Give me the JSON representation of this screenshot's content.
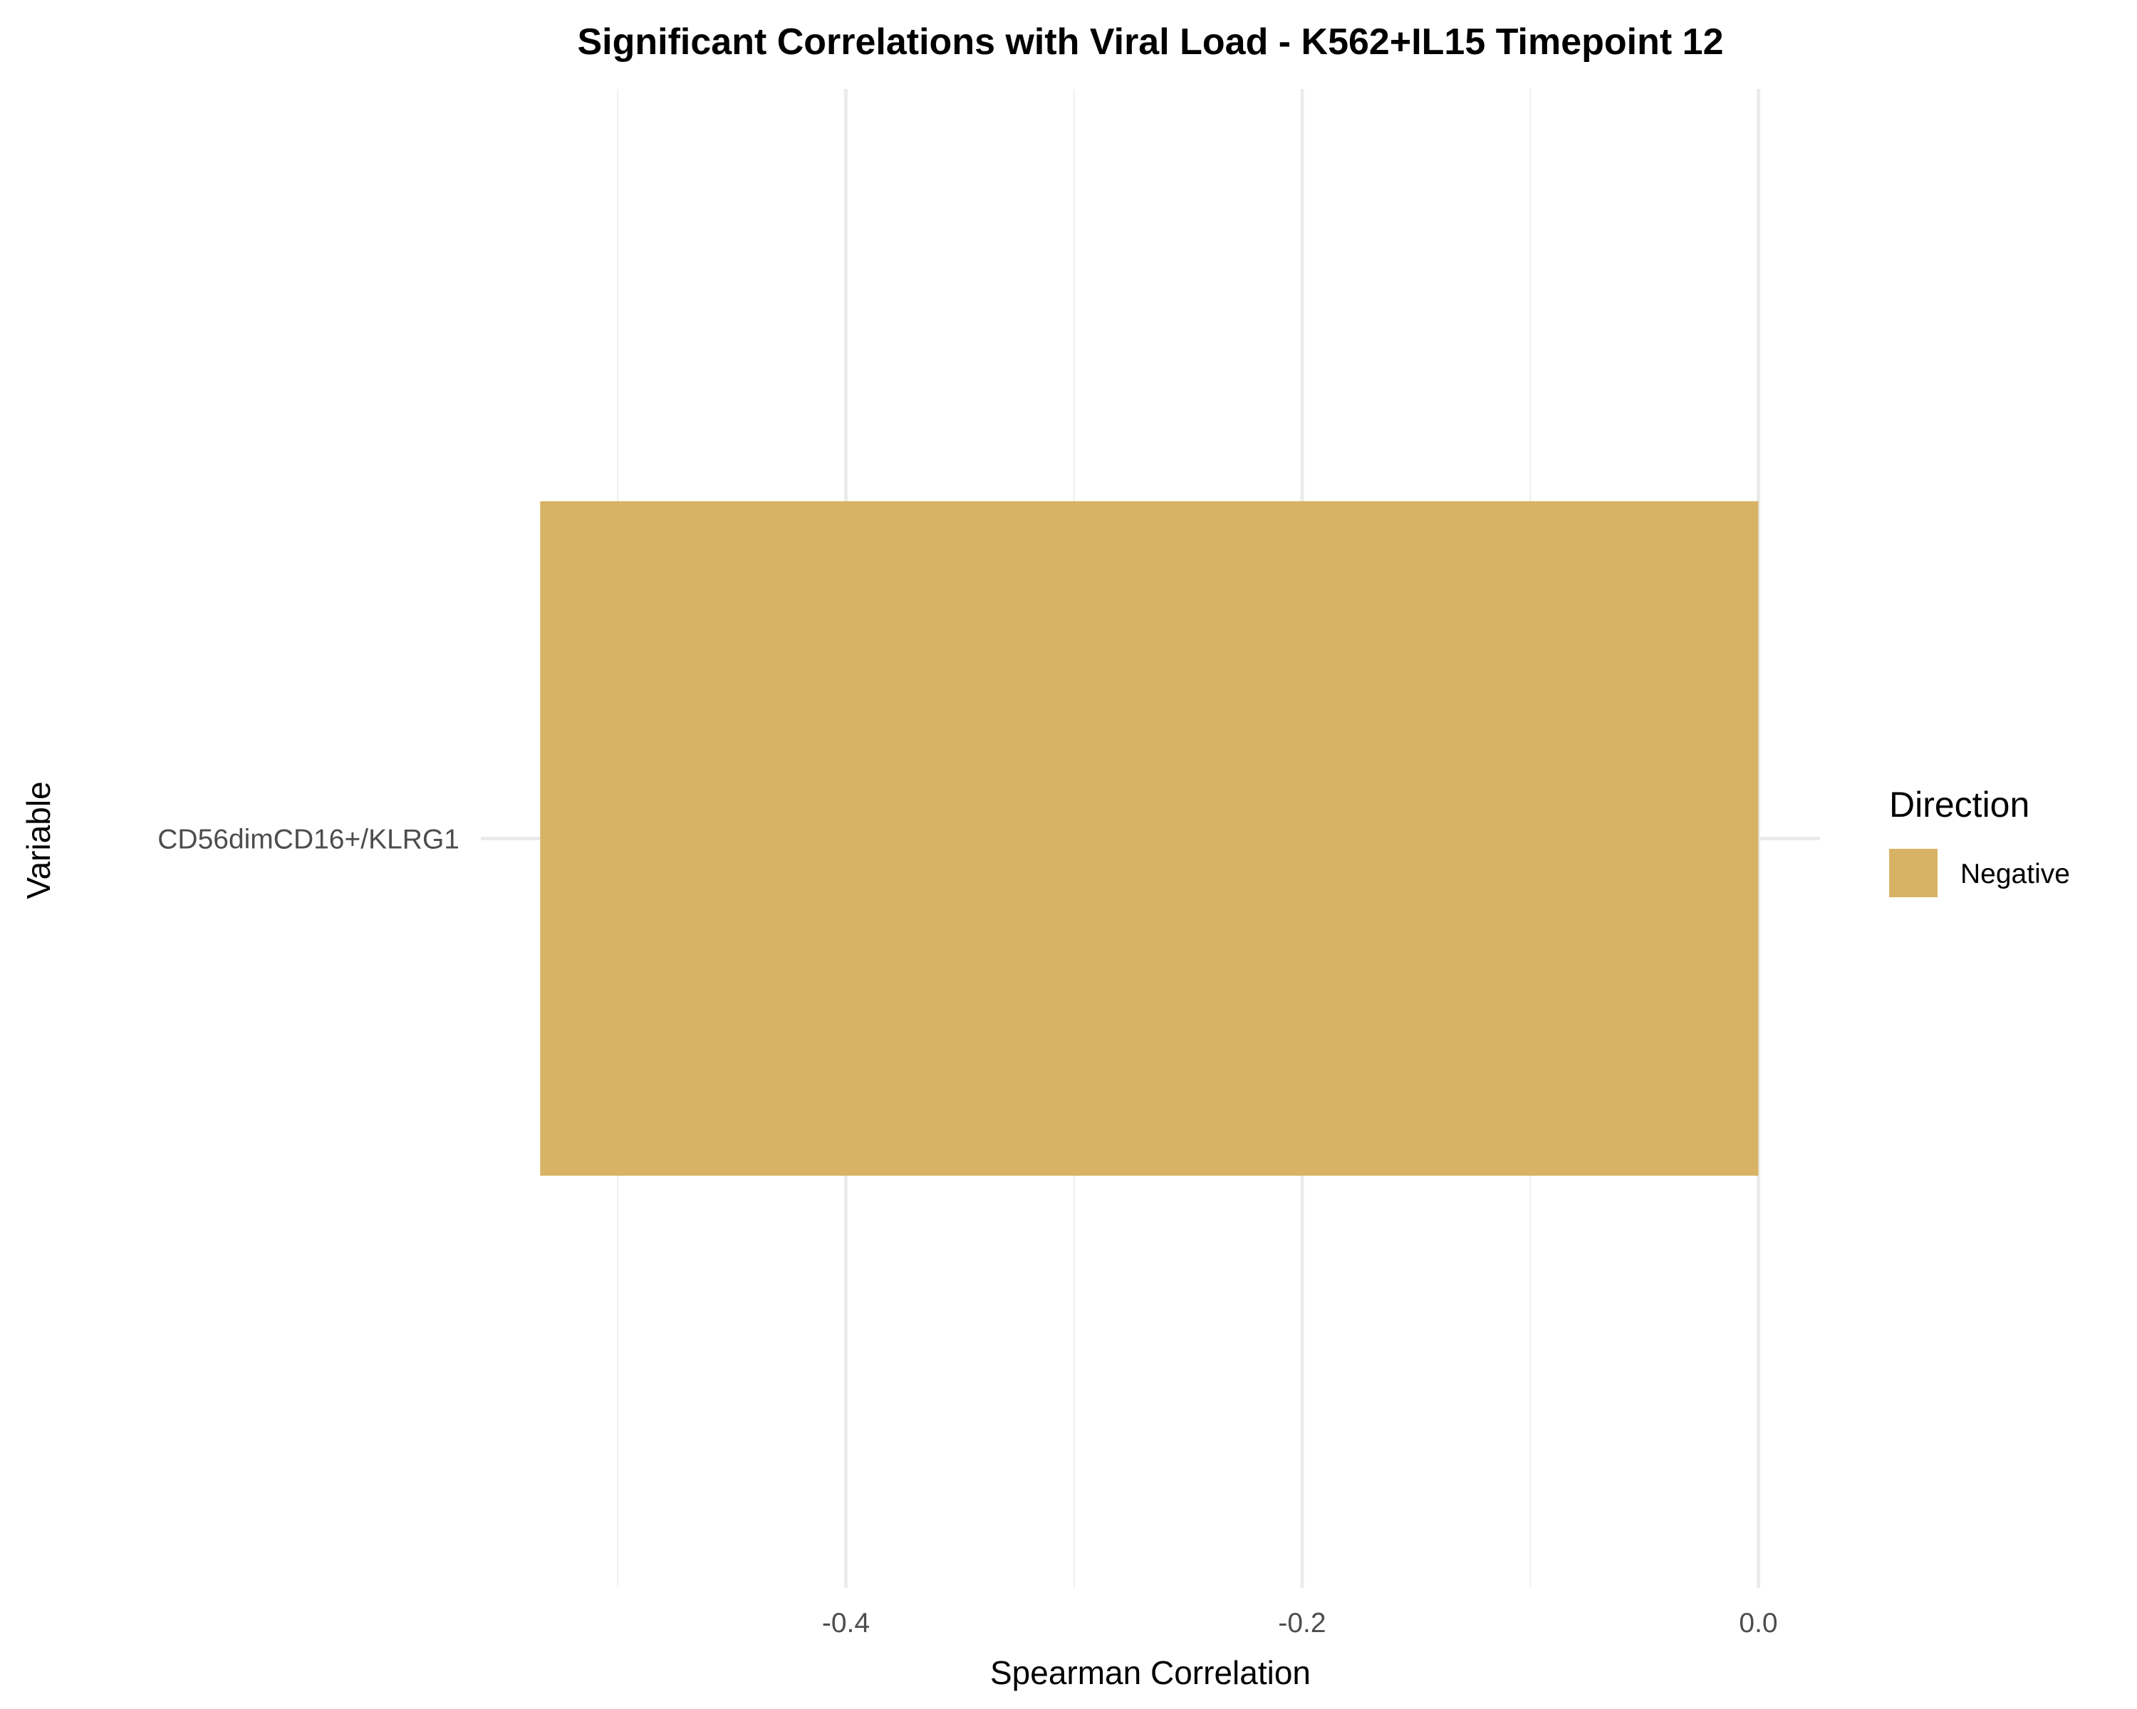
{
  "chart_data": {
    "type": "bar",
    "orientation": "horizontal",
    "title": "Significant Correlations with Viral Load - K562+IL15 Timepoint 12",
    "xlabel": "Spearman Correlation",
    "ylabel": "Variable",
    "categories": [
      "CD56dimCD16+/KLRG1"
    ],
    "series": [
      {
        "name": "Negative",
        "values": [
          -0.534
        ],
        "color": "#D8B365"
      }
    ],
    "xlim": [
      -0.56,
      0.027
    ],
    "xticks": [
      -0.4,
      -0.2,
      0.0
    ],
    "xtick_labels": [
      "-0.4",
      "-0.2",
      "0.0"
    ],
    "grid": true,
    "legend": {
      "title": "Direction",
      "placement": "right",
      "entries": [
        {
          "label": "Negative",
          "color": "#D8B365"
        }
      ]
    }
  }
}
